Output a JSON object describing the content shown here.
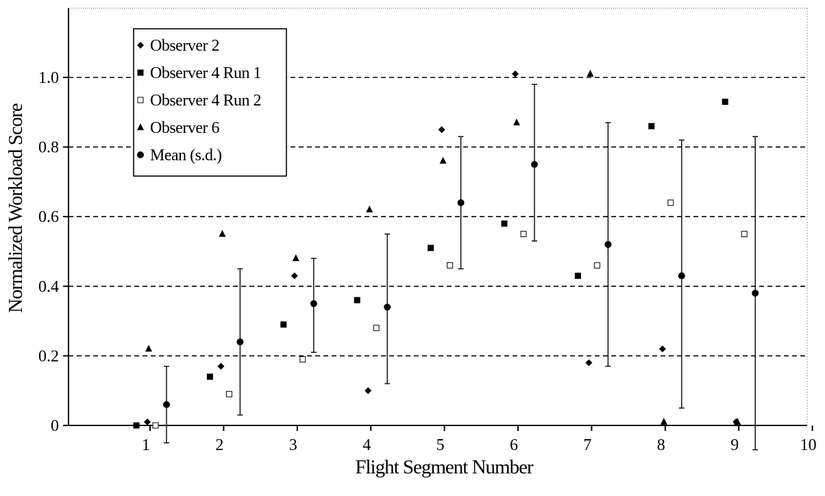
{
  "chart_data": {
    "type": "scatter",
    "title": "",
    "xlabel": "Flight Segment Number",
    "ylabel": "Normalized Workload Score",
    "xlim": [
      0,
      10
    ],
    "ylim": [
      0,
      1.2
    ],
    "x_ticks": [
      1,
      2,
      3,
      4,
      5,
      6,
      7,
      8,
      9,
      10
    ],
    "x_tick_labels": [
      "1",
      "2",
      "3",
      "4",
      "5",
      "6",
      "7",
      "8",
      "9",
      "10"
    ],
    "y_ticks": [
      0,
      0.2,
      0.4,
      0.6,
      0.8,
      1.0
    ],
    "y_tick_labels": [
      "0",
      "0.2",
      "0.4",
      "0.6",
      "0.8",
      "1.0"
    ],
    "grid": "horizontal dashed at y ticks",
    "legend_position": "top-left",
    "series": [
      {
        "name": "Observer 2",
        "marker": "diamond-filled",
        "color": "#000000",
        "points": [
          {
            "x": 1,
            "y": 0.01
          },
          {
            "x": 2,
            "y": 0.17
          },
          {
            "x": 3,
            "y": 0.43
          },
          {
            "x": 4,
            "y": 0.1
          },
          {
            "x": 5,
            "y": 0.85
          },
          {
            "x": 6,
            "y": 1.01
          },
          {
            "x": 7,
            "y": 0.18
          },
          {
            "x": 8,
            "y": 0.22
          },
          {
            "x": 9,
            "y": 0.01
          }
        ]
      },
      {
        "name": "Observer 4 Run 1",
        "marker": "square-filled",
        "color": "#000000",
        "points": [
          {
            "x": 1,
            "y": 0.0
          },
          {
            "x": 2,
            "y": 0.14
          },
          {
            "x": 3,
            "y": 0.29
          },
          {
            "x": 4,
            "y": 0.36
          },
          {
            "x": 5,
            "y": 0.51
          },
          {
            "x": 6,
            "y": 0.58
          },
          {
            "x": 7,
            "y": 0.43
          },
          {
            "x": 8,
            "y": 0.86
          },
          {
            "x": 9,
            "y": 0.93
          }
        ]
      },
      {
        "name": "Observer 4 Run 2",
        "marker": "square-open",
        "color": "#000000",
        "points": [
          {
            "x": 1,
            "y": 0.0
          },
          {
            "x": 2,
            "y": 0.09
          },
          {
            "x": 3,
            "y": 0.19
          },
          {
            "x": 4,
            "y": 0.28
          },
          {
            "x": 5,
            "y": 0.46
          },
          {
            "x": 6,
            "y": 0.55
          },
          {
            "x": 7,
            "y": 0.46
          },
          {
            "x": 8,
            "y": 0.64
          },
          {
            "x": 9,
            "y": 0.55
          }
        ]
      },
      {
        "name": "Observer 6",
        "marker": "triangle-filled",
        "color": "#000000",
        "points": [
          {
            "x": 1,
            "y": 0.22
          },
          {
            "x": 2,
            "y": 0.55
          },
          {
            "x": 3,
            "y": 0.48
          },
          {
            "x": 4,
            "y": 0.62
          },
          {
            "x": 5,
            "y": 0.76
          },
          {
            "x": 6,
            "y": 0.87
          },
          {
            "x": 7,
            "y": 1.01
          },
          {
            "x": 8,
            "y": 0.01
          },
          {
            "x": 9,
            "y": 0.01
          }
        ]
      },
      {
        "name": "Mean (s.d.)",
        "marker": "circle-filled",
        "color": "#000000",
        "points": [
          {
            "x": 1,
            "y": 0.06,
            "lo": -0.05,
            "hi": 0.17
          },
          {
            "x": 2,
            "y": 0.24,
            "lo": 0.03,
            "hi": 0.45
          },
          {
            "x": 3,
            "y": 0.35,
            "lo": 0.21,
            "hi": 0.48
          },
          {
            "x": 4,
            "y": 0.34,
            "lo": 0.12,
            "hi": 0.55
          },
          {
            "x": 5,
            "y": 0.64,
            "lo": 0.45,
            "hi": 0.83
          },
          {
            "x": 6,
            "y": 0.75,
            "lo": 0.53,
            "hi": 0.98
          },
          {
            "x": 7,
            "y": 0.52,
            "lo": 0.17,
            "hi": 0.87
          },
          {
            "x": 8,
            "y": 0.43,
            "lo": 0.05,
            "hi": 0.82
          },
          {
            "x": 9,
            "y": 0.38,
            "lo": -0.07,
            "hi": 0.83
          }
        ]
      }
    ]
  }
}
